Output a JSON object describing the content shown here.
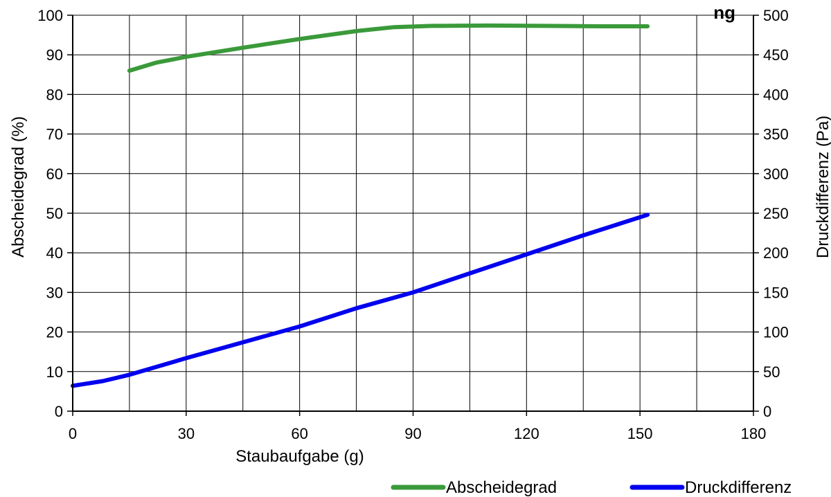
{
  "chart_data": {
    "type": "line",
    "title": "ng",
    "xlabel": "Staubaufgabe (g)",
    "ylabel_left": "Abscheidegrad (%)",
    "ylabel_right": "Druckdifferenz (Pa)",
    "xlim": [
      0,
      180
    ],
    "ylim_left": [
      0,
      100
    ],
    "ylim_right": [
      0,
      500
    ],
    "xticks": [
      "0",
      "30",
      "60",
      "90",
      "120",
      "150",
      "180"
    ],
    "yticks_left": [
      "0",
      "10",
      "20",
      "30",
      "40",
      "50",
      "60",
      "70",
      "80",
      "90",
      "100"
    ],
    "yticks_right": [
      "0",
      "50",
      "100",
      "150",
      "200",
      "250",
      "300",
      "350",
      "400",
      "450",
      "500"
    ],
    "grid": true,
    "legend_position": "bottom",
    "series": [
      {
        "name": "Abscheidegrad",
        "axis": "left",
        "color": "#3a9a3a",
        "x": [
          15,
          22,
          30,
          45,
          60,
          75,
          85,
          95,
          110,
          125,
          140,
          152
        ],
        "y": [
          86,
          88,
          89.5,
          91.8,
          94,
          96,
          97,
          97.3,
          97.4,
          97.3,
          97.2,
          97.2
        ]
      },
      {
        "name": "Druckdifferenz",
        "axis": "right",
        "color": "#0000ee",
        "x": [
          0,
          8,
          15,
          30,
          45,
          60,
          75,
          90,
          105,
          120,
          135,
          152
        ],
        "y": [
          32,
          38,
          46,
          67,
          87,
          107,
          130,
          150,
          174,
          198,
          222,
          248
        ]
      }
    ]
  }
}
